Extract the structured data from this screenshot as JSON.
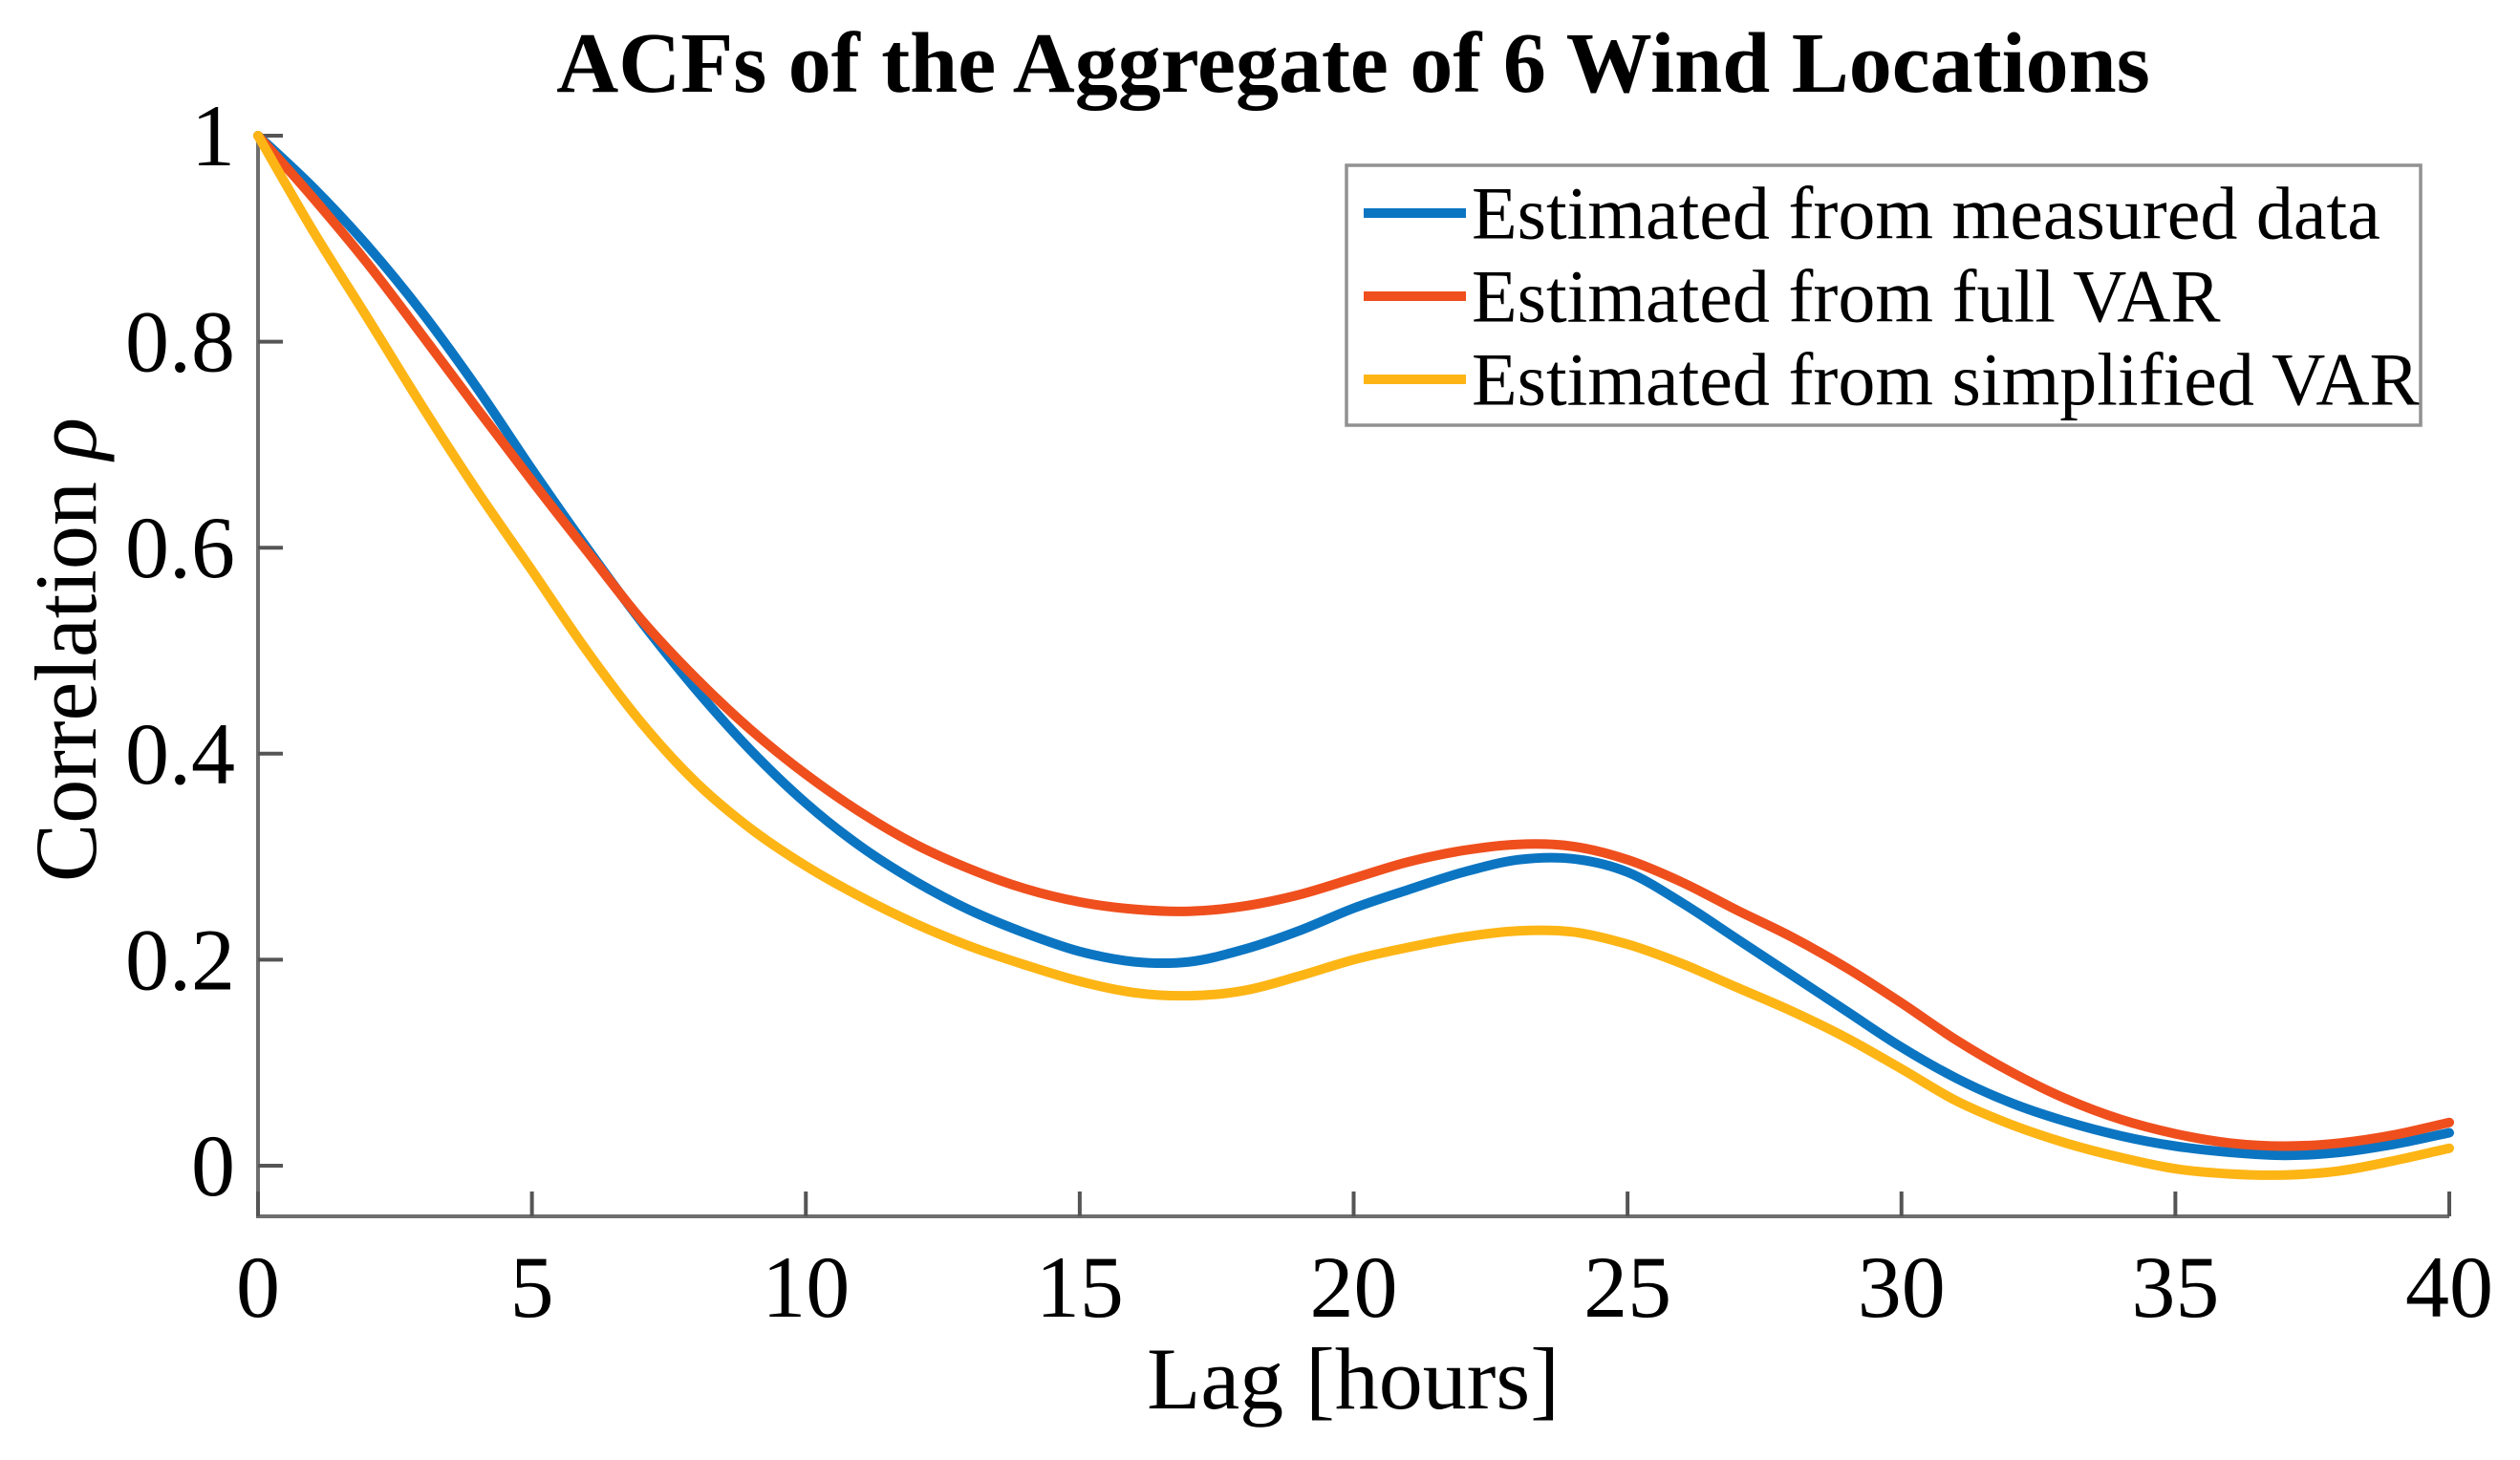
{
  "chart_data": {
    "type": "line",
    "title": "ACFs of the Aggregate of 6 Wind Locations",
    "xlabel": "Lag [hours]",
    "ylabel_text": "Correlation ",
    "ylabel_symbol": "ρ",
    "xlim": [
      0,
      40
    ],
    "ylim": [
      -0.05,
      1
    ],
    "xticks": [
      0,
      5,
      10,
      15,
      20,
      25,
      30,
      35,
      40
    ],
    "yticks": [
      0,
      0.2,
      0.4,
      0.6,
      0.8,
      1
    ],
    "grid": false,
    "legend_position": "upper right",
    "x": [
      0,
      1,
      2,
      3,
      4,
      5,
      6,
      7,
      8,
      9,
      10,
      11,
      12,
      13,
      14,
      15,
      16,
      17,
      18,
      19,
      20,
      21,
      22,
      23,
      24,
      25,
      26,
      27,
      28,
      29,
      30,
      31,
      32,
      33,
      34,
      35,
      36,
      37,
      38,
      39,
      40
    ],
    "series": [
      {
        "name": "Estimated from measured data",
        "color": "#0b75c2",
        "values": [
          1.0,
          0.95,
          0.893,
          0.828,
          0.755,
          0.676,
          0.6,
          0.528,
          0.462,
          0.403,
          0.352,
          0.31,
          0.276,
          0.248,
          0.226,
          0.208,
          0.198,
          0.198,
          0.21,
          0.228,
          0.25,
          0.268,
          0.285,
          0.297,
          0.298,
          0.285,
          0.255,
          0.22,
          0.185,
          0.15,
          0.115,
          0.085,
          0.061,
          0.043,
          0.029,
          0.019,
          0.013,
          0.01,
          0.013,
          0.021,
          0.032
        ]
      },
      {
        "name": "Estimated from full VAR",
        "color": "#ef4f1d",
        "values": [
          1.0,
          0.94,
          0.876,
          0.806,
          0.735,
          0.665,
          0.597,
          0.53,
          0.473,
          0.423,
          0.38,
          0.343,
          0.312,
          0.288,
          0.269,
          0.256,
          0.249,
          0.247,
          0.252,
          0.263,
          0.279,
          0.295,
          0.306,
          0.312,
          0.31,
          0.297,
          0.275,
          0.248,
          0.222,
          0.192,
          0.158,
          0.122,
          0.091,
          0.065,
          0.045,
          0.031,
          0.022,
          0.019,
          0.022,
          0.03,
          0.042
        ]
      },
      {
        "name": "Estimated from simplified VAR",
        "color": "#fdb515",
        "values": [
          1.0,
          0.908,
          0.823,
          0.737,
          0.655,
          0.578,
          0.5,
          0.43,
          0.372,
          0.327,
          0.291,
          0.261,
          0.235,
          0.213,
          0.195,
          0.179,
          0.168,
          0.165,
          0.17,
          0.184,
          0.2,
          0.212,
          0.222,
          0.228,
          0.227,
          0.215,
          0.196,
          0.173,
          0.15,
          0.124,
          0.094,
          0.063,
          0.04,
          0.022,
          0.008,
          -0.003,
          -0.008,
          -0.009,
          -0.005,
          0.005,
          0.017
        ]
      }
    ]
  },
  "styles": {
    "background": "#ffffff",
    "axis_color": "#6e6e6e",
    "tick_color": "#555555",
    "text_color": "#000000",
    "legend_border": "#919191",
    "legend_fill": "#ffffff"
  }
}
